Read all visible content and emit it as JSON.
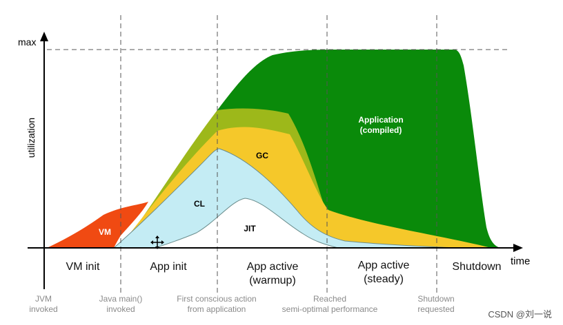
{
  "diagram": {
    "y_axis": {
      "label": "utilization",
      "max_label": "max"
    },
    "x_axis": {
      "label": "time"
    },
    "phases": [
      {
        "name": "VM init"
      },
      {
        "name": "App init"
      },
      {
        "name": "App active",
        "sub": "(warmup)"
      },
      {
        "name": "App active",
        "sub": "(steady)"
      },
      {
        "name": "Shutdown"
      }
    ],
    "events": [
      {
        "line1": "JVM",
        "line2": "invoked"
      },
      {
        "line1": "Java main()",
        "line2": "invoked"
      },
      {
        "line1": "First conscious action",
        "line2": "from application"
      },
      {
        "line1": "Reached",
        "line2": "semi-optimal performance"
      },
      {
        "line1": "Shutdown",
        "line2": "requested"
      }
    ],
    "areas": [
      {
        "key": "application",
        "line1": "Application",
        "line2": "(compiled)",
        "color": "#0a8a0a"
      },
      {
        "key": "gc_olive",
        "color": "#9db81a"
      },
      {
        "key": "gc",
        "label": "GC",
        "color": "#f5c82a"
      },
      {
        "key": "cl",
        "label": "CL",
        "color": "#c4ecf4"
      },
      {
        "key": "jit",
        "label": "JIT",
        "color": "#ffffff"
      },
      {
        "key": "vm",
        "label": "VM",
        "color": "#f04a12"
      }
    ]
  },
  "watermark": "CSDN @刘一说"
}
